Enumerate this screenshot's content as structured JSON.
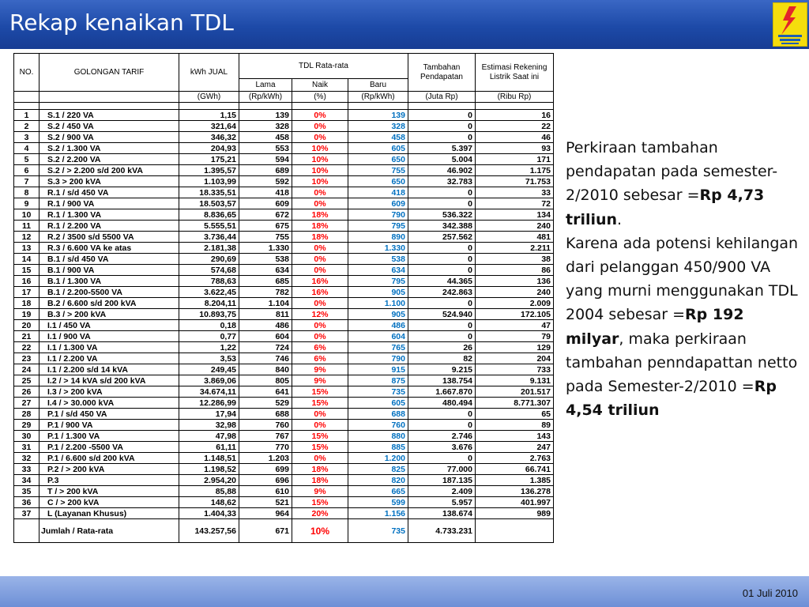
{
  "slide": {
    "title": "Rekap kenaikan TDL",
    "date": "01 Juli 2010"
  },
  "table": {
    "headers": {
      "no": "NO.",
      "golongan": "GOLONGAN TARIF",
      "kwh": "kWh JUAL",
      "tdl": "TDL Rata-rata",
      "lama": "Lama",
      "naik": "Naik",
      "baru": "Baru",
      "tambahan": "Tambahan Pendapatan",
      "estimasi": "Estimasi Rekening Listrik Saat ini"
    },
    "units": {
      "kwh": "(GWh)",
      "lama": "(Rp/kWh)",
      "naik": "(%)",
      "baru": "(Rp/kWh)",
      "tambahan": "(Juta Rp)",
      "estimasi": "(Ribu Rp)"
    },
    "rows": [
      {
        "no": "1",
        "golongan": "S.1 / 220 VA",
        "kwh": "1,15",
        "lama": "139",
        "naik": "0%",
        "baru": "139",
        "tambahan": "0",
        "estimasi": "16"
      },
      {
        "no": "2",
        "golongan": "S.2 / 450 VA",
        "kwh": "321,64",
        "lama": "328",
        "naik": "0%",
        "baru": "328",
        "tambahan": "0",
        "estimasi": "22"
      },
      {
        "no": "3",
        "golongan": "S.2 / 900 VA",
        "kwh": "346,32",
        "lama": "458",
        "naik": "0%",
        "baru": "458",
        "tambahan": "0",
        "estimasi": "46"
      },
      {
        "no": "4",
        "golongan": "S.2 / 1.300 VA",
        "kwh": "204,93",
        "lama": "553",
        "naik": "10%",
        "baru": "605",
        "tambahan": "5.397",
        "estimasi": "93"
      },
      {
        "no": "5",
        "golongan": "S.2 / 2.200 VA",
        "kwh": "175,21",
        "lama": "594",
        "naik": "10%",
        "baru": "650",
        "tambahan": "5.004",
        "estimasi": "171"
      },
      {
        "no": "6",
        "golongan": "S.2 / > 2.200 s/d 200 kVA",
        "kwh": "1.395,57",
        "lama": "689",
        "naik": "10%",
        "baru": "755",
        "tambahan": "46.902",
        "estimasi": "1.175"
      },
      {
        "no": "7",
        "golongan": "S.3 > 200 kVA",
        "kwh": "1.103,99",
        "lama": "592",
        "naik": "10%",
        "baru": "650",
        "tambahan": "32.783",
        "estimasi": "71.753"
      },
      {
        "no": "8",
        "golongan": "R.1 / s/d 450 VA",
        "kwh": "18.335,51",
        "lama": "418",
        "naik": "0%",
        "baru": "418",
        "tambahan": "0",
        "estimasi": "33"
      },
      {
        "no": "9",
        "golongan": "R.1 / 900 VA",
        "kwh": "18.503,57",
        "lama": "609",
        "naik": "0%",
        "baru": "609",
        "tambahan": "0",
        "estimasi": "72"
      },
      {
        "no": "10",
        "golongan": "R.1 / 1.300 VA",
        "kwh": "8.836,65",
        "lama": "672",
        "naik": "18%",
        "baru": "790",
        "tambahan": "536.322",
        "estimasi": "134"
      },
      {
        "no": "11",
        "golongan": "R.1 / 2.200 VA",
        "kwh": "5.555,51",
        "lama": "675",
        "naik": "18%",
        "baru": "795",
        "tambahan": "342.388",
        "estimasi": "240"
      },
      {
        "no": "12",
        "golongan": "R.2 / 3500 s/d 5500 VA",
        "kwh": "3.736,44",
        "lama": "755",
        "naik": "18%",
        "baru": "890",
        "tambahan": "257.562",
        "estimasi": "481"
      },
      {
        "no": "13",
        "golongan": "R.3 / 6.600 VA ke atas",
        "kwh": "2.181,38",
        "lama": "1.330",
        "naik": "0%",
        "baru": "1.330",
        "tambahan": "0",
        "estimasi": "2.211"
      },
      {
        "no": "14",
        "golongan": "B.1 / s/d 450 VA",
        "kwh": "290,69",
        "lama": "538",
        "naik": "0%",
        "baru": "538",
        "tambahan": "0",
        "estimasi": "38"
      },
      {
        "no": "15",
        "golongan": "B.1 / 900 VA",
        "kwh": "574,68",
        "lama": "634",
        "naik": "0%",
        "baru": "634",
        "tambahan": "0",
        "estimasi": "86"
      },
      {
        "no": "16",
        "golongan": "B.1 / 1.300 VA",
        "kwh": "788,63",
        "lama": "685",
        "naik": "16%",
        "baru": "795",
        "tambahan": "44.365",
        "estimasi": "136"
      },
      {
        "no": "17",
        "golongan": "B.1 / 2.200-5500 VA",
        "kwh": "3.622,45",
        "lama": "782",
        "naik": "16%",
        "baru": "905",
        "tambahan": "242.863",
        "estimasi": "240"
      },
      {
        "no": "18",
        "golongan": "B.2 / 6.600 s/d 200 kVA",
        "kwh": "8.204,11",
        "lama": "1.104",
        "naik": "0%",
        "baru": "1.100",
        "tambahan": "0",
        "estimasi": "2.009"
      },
      {
        "no": "19",
        "golongan": "B.3 / > 200 kVA",
        "kwh": "10.893,75",
        "lama": "811",
        "naik": "12%",
        "baru": "905",
        "tambahan": "524.940",
        "estimasi": "172.105"
      },
      {
        "no": "20",
        "golongan": "I.1 / 450 VA",
        "kwh": "0,18",
        "lama": "486",
        "naik": "0%",
        "baru": "486",
        "tambahan": "0",
        "estimasi": "47"
      },
      {
        "no": "21",
        "golongan": "I.1 / 900 VA",
        "kwh": "0,77",
        "lama": "604",
        "naik": "0%",
        "baru": "604",
        "tambahan": "0",
        "estimasi": "79"
      },
      {
        "no": "22",
        "golongan": "I.1 /  1.300 VA",
        "kwh": "1,22",
        "lama": "724",
        "naik": "6%",
        "baru": "765",
        "tambahan": "26",
        "estimasi": "129"
      },
      {
        "no": "23",
        "golongan": "I.1 /  2.200 VA",
        "kwh": "3,53",
        "lama": "746",
        "naik": "6%",
        "baru": "790",
        "tambahan": "82",
        "estimasi": "204"
      },
      {
        "no": "24",
        "golongan": "I.1 /  2.200 s/d 14 kVA",
        "kwh": "249,45",
        "lama": "840",
        "naik": "9%",
        "baru": "915",
        "tambahan": "9.215",
        "estimasi": "733"
      },
      {
        "no": "25",
        "golongan": "I.2 / > 14 kVA s/d 200 kVA",
        "kwh": "3.869,06",
        "lama": "805",
        "naik": "9%",
        "baru": "875",
        "tambahan": "138.754",
        "estimasi": "9.131"
      },
      {
        "no": "26",
        "golongan": "I.3 / > 200 kVA",
        "kwh": "34.674,11",
        "lama": "641",
        "naik": "15%",
        "baru": "735",
        "tambahan": "1.667.870",
        "estimasi": "201.517"
      },
      {
        "no": "27",
        "golongan": "I.4 / > 30.000 kVA",
        "kwh": "12.286,99",
        "lama": "529",
        "naik": "15%",
        "baru": "605",
        "tambahan": "480.494",
        "estimasi": "8.771.307"
      },
      {
        "no": "28",
        "golongan": "P.1 / s/d 450 VA",
        "kwh": "17,94",
        "lama": "688",
        "naik": "0%",
        "baru": "688",
        "tambahan": "0",
        "estimasi": "65"
      },
      {
        "no": "29",
        "golongan": "P.1 / 900 VA",
        "kwh": "32,98",
        "lama": "760",
        "naik": "0%",
        "baru": "760",
        "tambahan": "0",
        "estimasi": "89"
      },
      {
        "no": "30",
        "golongan": "P.1 / 1.300 VA",
        "kwh": "47,98",
        "lama": "767",
        "naik": "15%",
        "baru": "880",
        "tambahan": "2.746",
        "estimasi": "143"
      },
      {
        "no": "31",
        "golongan": "P.1 / 2.200 -5500 VA",
        "kwh": "61,11",
        "lama": "770",
        "naik": "15%",
        "baru": "885",
        "tambahan": "3.676",
        "estimasi": "247"
      },
      {
        "no": "32",
        "golongan": "P.1 / 6.600 s/d 200 kVA",
        "kwh": "1.148,51",
        "lama": "1.203",
        "naik": "0%",
        "baru": "1.200",
        "tambahan": "0",
        "estimasi": "2.763"
      },
      {
        "no": "33",
        "golongan": "P.2 / > 200 kVA",
        "kwh": "1.198,52",
        "lama": "699",
        "naik": "18%",
        "baru": "825",
        "tambahan": "77.000",
        "estimasi": "66.741"
      },
      {
        "no": "34",
        "golongan": "P.3",
        "kwh": "2.954,20",
        "lama": "696",
        "naik": "18%",
        "baru": "820",
        "tambahan": "187.135",
        "estimasi": "1.385"
      },
      {
        "no": "35",
        "golongan": "T / > 200 kVA",
        "kwh": "85,88",
        "lama": "610",
        "naik": "9%",
        "baru": "665",
        "tambahan": "2.409",
        "estimasi": "136.278"
      },
      {
        "no": "36",
        "golongan": "C / > 200 kVA",
        "kwh": "148,62",
        "lama": "521",
        "naik": "15%",
        "baru": "599",
        "tambahan": "5.957",
        "estimasi": "401.997"
      },
      {
        "no": "37",
        "golongan": "L (Layanan Khusus)",
        "kwh": "1.404,33",
        "lama": "964",
        "naik": "20%",
        "baru": "1.156",
        "tambahan": "138.674",
        "estimasi": "989"
      }
    ],
    "total": {
      "label": "Jumlah / Rata-rata",
      "kwh": "143.257,56",
      "lama": "671",
      "naik": "10%",
      "baru": "735",
      "tambahan": "4.733.231",
      "estimasi": ""
    }
  },
  "notes": {
    "p1_prefix": "Perkiraan tambahan pendapatan pada semester-2/2010 sebesar =",
    "p1_bold": "Rp 4,73 triliun",
    "p1_suffix": ".",
    "p2_prefix": "Karena ada potensi kehilangan dari pelanggan 450/900 VA yang murni menggunakan TDL 2004 sebesar =",
    "p2_bold": "Rp 192 milyar",
    "p2_suffix": ", maka perkiraan tambahan penndapattan netto pada Semester-2/2010 =",
    "p3_bold": "Rp 4,54 triliun"
  },
  "colors": {
    "header_blue": "#1d4aa8",
    "increase_red": "#ff0000",
    "new_tariff_blue": "#0070c0",
    "logo_yellow": "#f5dd0d"
  },
  "icons": {
    "logo": "pln-lightning-logo-icon"
  }
}
